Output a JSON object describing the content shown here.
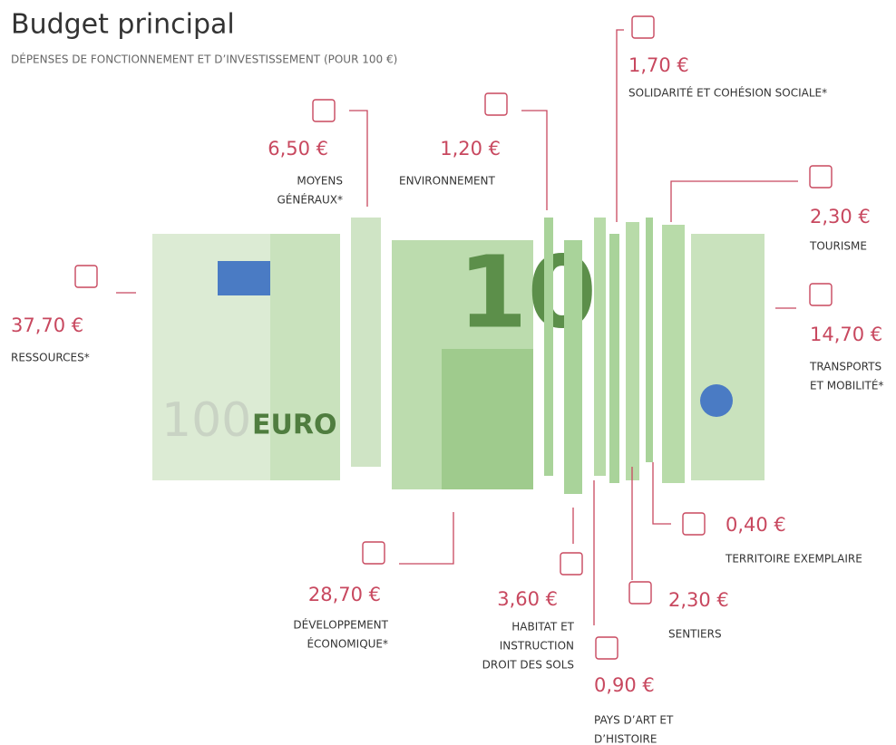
{
  "header": {
    "title": "Budget principal",
    "subtitle": "DÉPENSES DE FONCTIONNEMENT ET D’INVESTISSEMENT (POUR 100 €)"
  },
  "items": [
    {
      "amount": "37,70 €",
      "label": [
        "RESSOURCES*"
      ]
    },
    {
      "amount": "6,50 €",
      "label": [
        "MOYENS",
        "GÉNÉRAUX*"
      ]
    },
    {
      "amount": "1,20 €",
      "label": [
        "ENVIRONNEMENT"
      ]
    },
    {
      "amount": "1,70 €",
      "label": [
        "SOLIDARITÉ ET COHÉSION SOCIALE*"
      ]
    },
    {
      "amount": "2,30 €",
      "label": [
        "TOURISME"
      ]
    },
    {
      "amount": "14,70 €",
      "label": [
        "TRANSPORTS",
        "ET MOBILITÉ*"
      ]
    },
    {
      "amount": "0,40 €",
      "label": [
        "TERRITOIRE EXEMPLAIRE"
      ]
    },
    {
      "amount": "2,30 €",
      "label": [
        "SENTIERS"
      ]
    },
    {
      "amount": "0,90 €",
      "label": [
        "PAYS D’ART ET",
        "D’HISTOIRE"
      ]
    },
    {
      "amount": "3,60 €",
      "label": [
        "HABITAT ET",
        "INSTRUCTION",
        "DROIT DES SOLS"
      ]
    },
    {
      "amount": "28,70 €",
      "label": [
        "DÉVELOPPEMENT",
        "ÉCONOMIQUE*"
      ]
    }
  ]
}
